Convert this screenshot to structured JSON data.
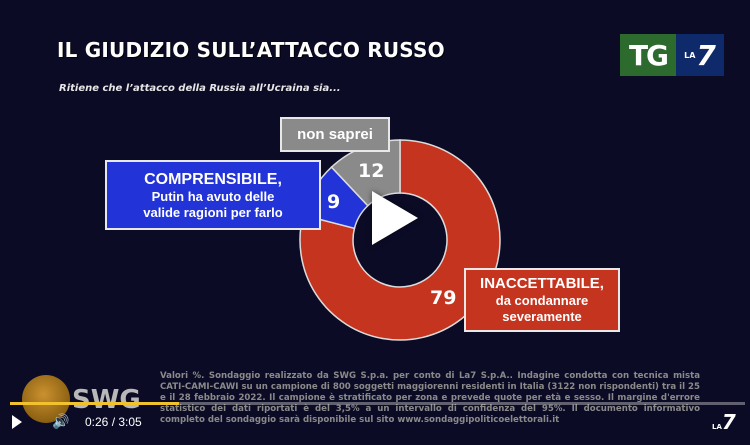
{
  "header": {
    "title": "IL GIUDIZIO SULL’ATTACCO RUSSO",
    "subtitle": "Ritiene che l’attacco della Russia all’Ucraina sia...",
    "logo_tg": "TG",
    "logo_la": "LA",
    "logo_7": "7"
  },
  "chart_data": {
    "type": "pie",
    "donut": true,
    "slices": [
      {
        "label": "INACCETTABILE, da condannare severamente",
        "label_lines": [
          "INACCETTABILE,",
          "da condannare",
          "severamente"
        ],
        "value": 79,
        "color": "#c4341f"
      },
      {
        "label": "COMPRENSIBILE, Putin ha avuto delle valide ragioni per farlo",
        "label_lines": [
          "COMPRENSIBILE,",
          "Putin ha avuto delle",
          "valide ragioni per farlo"
        ],
        "value": 9,
        "color": "#2233d8"
      },
      {
        "label": "non saprei",
        "label_lines": [
          "non saprei"
        ],
        "value": 12,
        "color": "#8a8a8a"
      }
    ],
    "unit": "%"
  },
  "footer": {
    "brand": "SWG",
    "note": "Valori %. Sondaggio realizzato da SWG S.p.a. per conto di La7 S.p.A.. Indagine condotta con tecnica mista CATI-CAMI-CAWI su un campione di 800 soggetti maggiorenni residenti in Italia (3122 non rispondenti) tra il 25 e il 28 febbraio 2022. Il campione è stratificato per zona e prevede quote per età e sesso. Il margine d'errore statistico dei dati riportati è del 3,5% a un intervallo di confidenza del 95%. Il documento informativo completo del sondaggio sarà disponibile sul sito www.sondaggipoliticoelettorali.it"
  },
  "player": {
    "time": "0:26 / 3:05",
    "progress": 0.23,
    "accent": "#f2c12e",
    "watermark_la": "LA",
    "watermark_7": "7"
  }
}
